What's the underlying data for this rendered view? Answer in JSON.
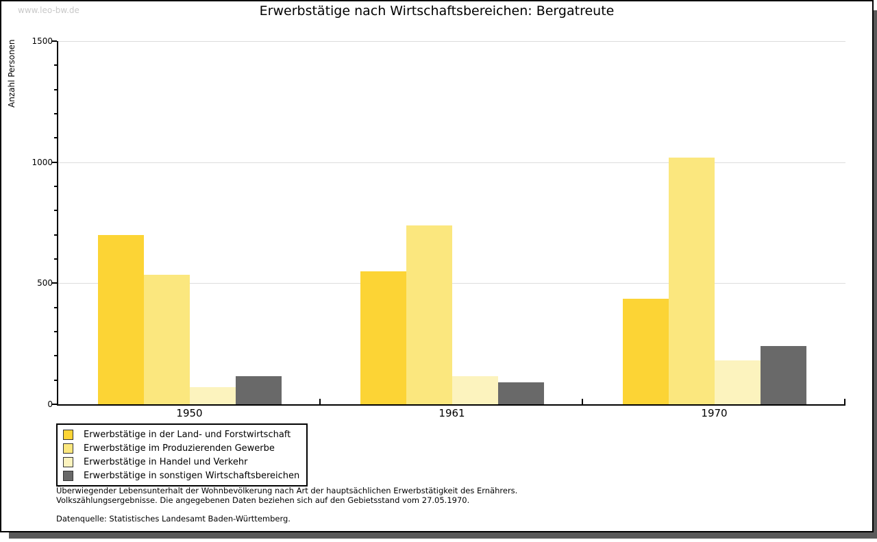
{
  "watermark": "www.leo-bw.de",
  "title": "Erwerbstätige nach Wirtschaftsbereichen: Bergatreute",
  "chart_data": {
    "type": "bar",
    "title": "Erwerbstätige nach Wirtschaftsbereichen: Bergatreute",
    "xlabel": "",
    "ylabel": "Anzahl Personen",
    "ylim": [
      0,
      1500
    ],
    "ytick_major": 500,
    "ytick_minor": 100,
    "ytick_labels": [
      "0",
      "500",
      "1000",
      "1500"
    ],
    "grid": true,
    "legend_position": "bottom-left",
    "categories": [
      "1950",
      "1961",
      "1970"
    ],
    "series": [
      {
        "name": "Erwerbstätige in der Land- und Forstwirtschaft",
        "color": "#FCD435",
        "values": [
          700,
          550,
          435
        ]
      },
      {
        "name": "Erwerbstätige im Produzierenden Gewerbe",
        "color": "#FBE77E",
        "values": [
          535,
          740,
          1020
        ]
      },
      {
        "name": "Erwerbstätige in Handel und Verkehr",
        "color": "#FCF3BE",
        "values": [
          70,
          115,
          180
        ]
      },
      {
        "name": "Erwerbstätige in sonstigen Wirtschaftsbereichen",
        "color": "#696969",
        "values": [
          115,
          90,
          240
        ]
      }
    ]
  },
  "footnote": {
    "line1": "Überwiegender Lebensunterhalt der Wohnbevölkerung nach Art der hauptsächlichen Erwerbstätigkeit des Ernährers.",
    "line2": "Volkszählungsergebnisse. Die angegebenen Daten beziehen sich auf den Gebietsstand vom 27.05.1970.",
    "source": "Datenquelle: Statistisches Landesamt Baden-Württemberg."
  }
}
